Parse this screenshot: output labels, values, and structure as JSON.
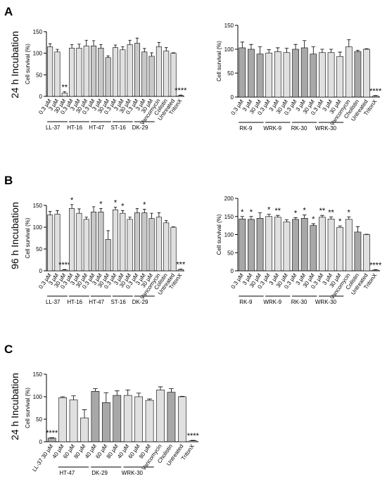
{
  "panels": [
    {
      "letter": "A",
      "row_label": "24 h Incubation"
    },
    {
      "letter": "B",
      "row_label": "96 h Incubation"
    },
    {
      "letter": "C",
      "row_label": "24 h Incubation"
    }
  ],
  "chart_data": [
    {
      "type": "bar",
      "y_label": "Cell survival (%)",
      "ylim": [
        0,
        150
      ],
      "yticks": [
        0,
        50,
        100,
        150
      ],
      "groups": [
        {
          "label": "LL-37",
          "color": "#e0e0e0",
          "categories": [
            "0.3 µM",
            "3 µM",
            "30 µM"
          ],
          "values": [
            115,
            103,
            8
          ],
          "errors": [
            7,
            6,
            3
          ],
          "significance": [
            null,
            null,
            "**"
          ]
        },
        {
          "label": "HT-16",
          "color": "#e0e0e0",
          "categories": [
            "0.3 µM",
            "3 µM",
            "30 µM"
          ],
          "values": [
            112,
            112,
            117
          ],
          "errors": [
            8,
            9,
            13
          ],
          "significance": [
            null,
            null,
            null
          ]
        },
        {
          "label": "HT-47",
          "color": "#c8c8c8",
          "categories": [
            "0.3 µM",
            "3 µM",
            "30 µM"
          ],
          "values": [
            117,
            112,
            90
          ],
          "errors": [
            12,
            8,
            4
          ],
          "significance": [
            null,
            null,
            null
          ]
        },
        {
          "label": "ST-16",
          "color": "#e0e0e0",
          "categories": [
            "0.3 µM",
            "3 µM",
            "30 µM"
          ],
          "values": [
            113,
            108,
            120
          ],
          "errors": [
            6,
            7,
            10
          ],
          "significance": [
            null,
            null,
            null
          ]
        },
        {
          "label": "DK-29",
          "color": "#c8c8c8",
          "categories": [
            "0.3 µM",
            "3 µM",
            "30 µM"
          ],
          "values": [
            123,
            103,
            93
          ],
          "errors": [
            12,
            8,
            8
          ],
          "significance": [
            null,
            null,
            null
          ]
        },
        {
          "color": "#e0e0e0",
          "categories": [
            "Vancomycin"
          ],
          "values": [
            115
          ],
          "errors": [
            10
          ],
          "significance": [
            null
          ]
        },
        {
          "color": "#e0e0e0",
          "categories": [
            "Colistin"
          ],
          "values": [
            105
          ],
          "errors": [
            8
          ],
          "significance": [
            null
          ]
        },
        {
          "color": "#e0e0e0",
          "categories": [
            "Untreated"
          ],
          "values": [
            100
          ],
          "errors": [
            1
          ],
          "significance": [
            null
          ]
        },
        {
          "color": "#e0e0e0",
          "categories": [
            "TritonX"
          ],
          "values": [
            2
          ],
          "errors": [
            1
          ],
          "significance": [
            "****"
          ]
        }
      ]
    },
    {
      "type": "bar",
      "y_label": "Cell survival (%)",
      "ylim": [
        0,
        150
      ],
      "yticks": [
        0,
        50,
        100,
        150
      ],
      "groups": [
        {
          "label": "RK-9",
          "color": "#a8a8a8",
          "categories": [
            "0.3 µM",
            "3 µM",
            "30 µM"
          ],
          "values": [
            103,
            100,
            90
          ],
          "errors": [
            12,
            10,
            15
          ],
          "significance": [
            null,
            null,
            null
          ]
        },
        {
          "label": "WRK-9",
          "color": "#e0e0e0",
          "categories": [
            "0.3 µM",
            "3 µM",
            "30 µM"
          ],
          "values": [
            92,
            95,
            93
          ],
          "errors": [
            7,
            8,
            9
          ],
          "significance": [
            null,
            null,
            null
          ]
        },
        {
          "label": "RK-30",
          "color": "#a8a8a8",
          "categories": [
            "0.3 µM",
            "3 µM",
            "30 µM"
          ],
          "values": [
            100,
            103,
            90
          ],
          "errors": [
            10,
            15,
            15
          ],
          "significance": [
            null,
            null,
            null
          ]
        },
        {
          "label": "WRK-30",
          "color": "#e0e0e0",
          "categories": [
            "0.3 µM",
            "3 µM",
            "30 µM"
          ],
          "values": [
            93,
            93,
            85
          ],
          "errors": [
            7,
            7,
            9
          ],
          "significance": [
            null,
            null,
            null
          ]
        },
        {
          "color": "#e0e0e0",
          "categories": [
            "Vancomycin"
          ],
          "values": [
            105
          ],
          "errors": [
            15
          ],
          "significance": [
            null
          ]
        },
        {
          "color": "#a8a8a8",
          "categories": [
            "Cholistin"
          ],
          "values": [
            95
          ],
          "errors": [
            3
          ],
          "significance": [
            null
          ]
        },
        {
          "color": "#e0e0e0",
          "categories": [
            "Untreated"
          ],
          "values": [
            100
          ],
          "errors": [
            1
          ],
          "significance": [
            null
          ]
        },
        {
          "color": "#e0e0e0",
          "categories": [
            "TritonX"
          ],
          "values": [
            2
          ],
          "errors": [
            1
          ],
          "significance": [
            "****"
          ]
        }
      ]
    },
    {
      "type": "bar",
      "y_label": "Cell survival (%)",
      "ylim": [
        0,
        150
      ],
      "yticks": [
        0,
        50,
        100,
        150
      ],
      "groups": [
        {
          "label": "LL-37",
          "color": "#e0e0e0",
          "categories": [
            "0.3 µM",
            "3 µM",
            "30 µM"
          ],
          "values": [
            128,
            130,
            2
          ],
          "errors": [
            8,
            8,
            1
          ],
          "significance": [
            null,
            null,
            "****"
          ]
        },
        {
          "label": "HT-16",
          "color": "#e0e0e0",
          "categories": [
            "0.3 µM",
            "3 µM",
            "30 µM"
          ],
          "values": [
            143,
            132,
            118
          ],
          "errors": [
            9,
            10,
            5
          ],
          "significance": [
            "*",
            null,
            null
          ]
        },
        {
          "label": "HT-47",
          "color": "#c8c8c8",
          "categories": [
            "0.3 µM",
            "3 µM",
            "30 µM"
          ],
          "values": [
            135,
            135,
            72
          ],
          "errors": [
            12,
            8,
            20
          ],
          "significance": [
            null,
            "*",
            null
          ]
        },
        {
          "label": "ST-16",
          "color": "#e0e0e0",
          "categories": [
            "0.3 µM",
            "3 µM",
            "30 µM"
          ],
          "values": [
            140,
            132,
            118
          ],
          "errors": [
            6,
            6,
            5
          ],
          "significance": [
            "*",
            "*",
            null
          ]
        },
        {
          "label": "DK-29",
          "color": "#c8c8c8",
          "categories": [
            "0.3 µM",
            "3 µM",
            "30 µM"
          ],
          "values": [
            133,
            133,
            120
          ],
          "errors": [
            10,
            8,
            12
          ],
          "significance": [
            null,
            "*",
            null
          ]
        },
        {
          "color": "#e0e0e0",
          "categories": [
            "Vancomycin"
          ],
          "values": [
            123
          ],
          "errors": [
            10
          ],
          "significance": [
            null
          ]
        },
        {
          "color": "#e0e0e0",
          "categories": [
            "Colistin"
          ],
          "values": [
            110
          ],
          "errors": [
            5
          ],
          "significance": [
            null
          ]
        },
        {
          "color": "#e0e0e0",
          "categories": [
            "Untreated"
          ],
          "values": [
            100
          ],
          "errors": [
            1
          ],
          "significance": [
            null
          ]
        },
        {
          "color": "#e0e0e0",
          "categories": [
            "TritonX"
          ],
          "values": [
            3
          ],
          "errors": [
            1
          ],
          "significance": [
            "***"
          ]
        }
      ]
    },
    {
      "type": "bar",
      "y_label": "Cell survival (%)",
      "ylim": [
        0,
        200
      ],
      "yticks": [
        0,
        50,
        100,
        150,
        200
      ],
      "groups": [
        {
          "label": "RK-9",
          "color": "#a8a8a8",
          "categories": [
            "0.3 µM",
            "3 µM",
            "30 µM"
          ],
          "values": [
            143,
            142,
            145
          ],
          "errors": [
            7,
            8,
            15
          ],
          "significance": [
            "*",
            "*",
            null
          ]
        },
        {
          "label": "WRK-9",
          "color": "#e0e0e0",
          "categories": [
            "0.3 µM",
            "3 µM",
            "30 µM"
          ],
          "values": [
            150,
            148,
            135
          ],
          "errors": [
            6,
            5,
            6
          ],
          "significance": [
            "*",
            "**",
            null
          ]
        },
        {
          "label": "RK-30",
          "color": "#a8a8a8",
          "categories": [
            "0.3 µM",
            "3 µM",
            "30 µM"
          ],
          "values": [
            142,
            145,
            125
          ],
          "errors": [
            5,
            9,
            5
          ],
          "significance": [
            "*",
            "*",
            "*"
          ]
        },
        {
          "label": "WRK-30",
          "color": "#e0e0e0",
          "categories": [
            "0.3 µM",
            "3 µM",
            "30 µM"
          ],
          "values": [
            148,
            143,
            120
          ],
          "errors": [
            5,
            6,
            4
          ],
          "significance": [
            "**",
            "**",
            "*"
          ]
        },
        {
          "color": "#e0e0e0",
          "categories": [
            "Vancomycin"
          ],
          "values": [
            142
          ],
          "errors": [
            7
          ],
          "significance": [
            "*"
          ]
        },
        {
          "color": "#a8a8a8",
          "categories": [
            "Colistin"
          ],
          "values": [
            107
          ],
          "errors": [
            15
          ],
          "significance": [
            null
          ]
        },
        {
          "color": "#e0e0e0",
          "categories": [
            "Untreated"
          ],
          "values": [
            100
          ],
          "errors": [
            1
          ],
          "significance": [
            null
          ]
        },
        {
          "color": "#e0e0e0",
          "categories": [
            "TritonX"
          ],
          "values": [
            2
          ],
          "errors": [
            1
          ],
          "significance": [
            "****"
          ]
        }
      ]
    },
    {
      "type": "bar",
      "y_label": "Cell survival (%)",
      "ylim": [
        0,
        150
      ],
      "yticks": [
        0,
        50,
        100,
        150
      ],
      "groups": [
        {
          "color": "#a8a8a8",
          "categories": [
            "LL-37 30 µM"
          ],
          "values": [
            8
          ],
          "errors": [
            1
          ],
          "significance": [
            "****"
          ]
        },
        {
          "label": "HT-47",
          "color": "#e0e0e0",
          "categories": [
            "40 µM",
            "60 µM",
            "80 µM"
          ],
          "values": [
            98,
            93,
            53
          ],
          "errors": [
            2,
            9,
            18
          ],
          "significance": [
            null,
            null,
            null
          ]
        },
        {
          "label": "DK-29",
          "color": "#a8a8a8",
          "categories": [
            "40 µM",
            "60 µM",
            "80 µM"
          ],
          "values": [
            112,
            87,
            103
          ],
          "errors": [
            6,
            22,
            10
          ],
          "significance": [
            null,
            null,
            null
          ]
        },
        {
          "label": "WRK-30",
          "color": "#e0e0e0",
          "categories": [
            "40 µM",
            "60 µM",
            "80 µM"
          ],
          "values": [
            103,
            100,
            92
          ],
          "errors": [
            12,
            8,
            3
          ],
          "significance": [
            null,
            null,
            null
          ]
        },
        {
          "color": "#e0e0e0",
          "categories": [
            "Vancomycin"
          ],
          "values": [
            115
          ],
          "errors": [
            7
          ],
          "significance": [
            null
          ]
        },
        {
          "color": "#a8a8a8",
          "categories": [
            "Cholistin"
          ],
          "values": [
            110
          ],
          "errors": [
            8
          ],
          "significance": [
            null
          ]
        },
        {
          "color": "#e0e0e0",
          "categories": [
            "Untreated"
          ],
          "values": [
            100
          ],
          "errors": [
            1
          ],
          "significance": [
            null
          ]
        },
        {
          "color": "#e0e0e0",
          "categories": [
            "TritonX"
          ],
          "values": [
            2
          ],
          "errors": [
            1
          ],
          "significance": [
            "****"
          ]
        }
      ]
    }
  ]
}
